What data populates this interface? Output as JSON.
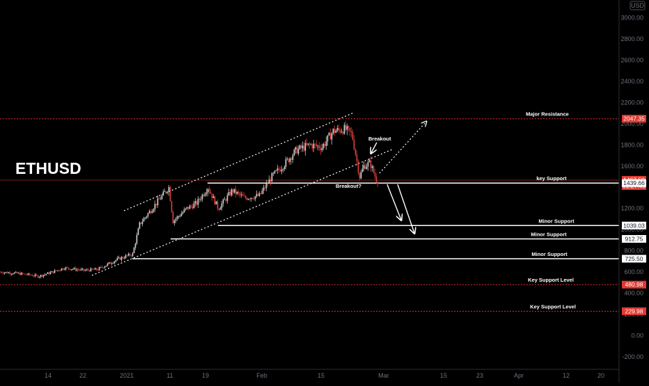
{
  "chart_data": {
    "type": "candlestick",
    "title": "ETHUSD",
    "currency": "USD",
    "y_axis": {
      "ticks": [
        "3000.00",
        "2800.00",
        "2600.00",
        "2400.00",
        "2200.00",
        "2000.00",
        "1800.00",
        "1600.00",
        "1400.00",
        "1200.00",
        "1000.00",
        "800.00",
        "600.00",
        "400.00",
        "200.00",
        "0.00",
        "-200.00"
      ],
      "ylim": [
        -290,
        3140
      ]
    },
    "x_axis": {
      "ticks": [
        "14",
        "22",
        "2021",
        "11",
        "19",
        "Feb",
        "15",
        "Mar",
        "15",
        "23",
        "Apr",
        "12",
        "20"
      ]
    },
    "price_series": [
      {
        "x": "Dec 01",
        "close": 600
      },
      {
        "x": "Dec 05",
        "close": 590
      },
      {
        "x": "Dec 09",
        "close": 575
      },
      {
        "x": "Dec 12",
        "close": 560
      },
      {
        "x": "Dec 16",
        "close": 600
      },
      {
        "x": "Dec 19",
        "close": 640
      },
      {
        "x": "Dec 22",
        "close": 615
      },
      {
        "x": "Dec 25",
        "close": 625
      },
      {
        "x": "Dec 29",
        "close": 720
      },
      {
        "x": "Jan 02",
        "close": 770
      },
      {
        "x": "Jan 04",
        "close": 1050
      },
      {
        "x": "Jan 07",
        "close": 1200
      },
      {
        "x": "Jan 10",
        "close": 1400
      },
      {
        "x": "Jan 11",
        "close": 1080
      },
      {
        "x": "Jan 14",
        "close": 1200
      },
      {
        "x": "Jan 17",
        "close": 1250
      },
      {
        "x": "Jan 19",
        "close": 1400
      },
      {
        "x": "Jan 22",
        "close": 1200
      },
      {
        "x": "Jan 25",
        "close": 1370
      },
      {
        "x": "Jan 28",
        "close": 1300
      },
      {
        "x": "Jan 31",
        "close": 1320
      },
      {
        "x": "Feb 03",
        "close": 1500
      },
      {
        "x": "Feb 06",
        "close": 1620
      },
      {
        "x": "Feb 09",
        "close": 1750
      },
      {
        "x": "Feb 13",
        "close": 1800
      },
      {
        "x": "Feb 16",
        "close": 1780
      },
      {
        "x": "Feb 18",
        "close": 1930
      },
      {
        "x": "Feb 20",
        "close": 1950
      },
      {
        "x": "Feb 21",
        "close": 1900
      },
      {
        "x": "Feb 23",
        "close": 1500
      },
      {
        "x": "Feb 24",
        "close": 1600
      },
      {
        "x": "Feb 25",
        "close": 1630
      },
      {
        "x": "Feb 26",
        "close": 1470
      },
      {
        "x": "Feb 27",
        "close": 1467.5
      }
    ],
    "price_tags": [
      {
        "value": 2047.35,
        "label": "2047.35",
        "style": "red"
      },
      {
        "value": 1467.5,
        "label": "1467.50",
        "sub": "01:27:45",
        "style": "red"
      },
      {
        "value": 1439.66,
        "label": "1439.66",
        "style": "white"
      },
      {
        "value": 1039.03,
        "label": "1039.03",
        "style": "white"
      },
      {
        "value": 912.75,
        "label": "912.75",
        "style": "white"
      },
      {
        "value": 725.5,
        "label": "725.50",
        "style": "white"
      },
      {
        "value": 480.98,
        "label": "480.98",
        "style": "red"
      },
      {
        "value": 229.98,
        "label": "229.98",
        "style": "red"
      }
    ],
    "levels": [
      {
        "name": "Major Resistance",
        "value": 2047.35,
        "style": "dotted-red"
      },
      {
        "name": "key Support",
        "value": 1439.66,
        "style": "solid-white"
      },
      {
        "name": "Minor Support",
        "value": 1039.03,
        "style": "solid-white"
      },
      {
        "name": "Minor Support",
        "value": 912.75,
        "style": "solid-white"
      },
      {
        "name": "Minor Support",
        "value": 725.5,
        "style": "solid-white"
      },
      {
        "name": "Key Support Level",
        "value": 480.98,
        "style": "dotted-red"
      },
      {
        "name": "Key Support Level",
        "value": 229.98,
        "style": "dotted-red"
      }
    ],
    "annotations": [
      "Breakout",
      "Breakout?"
    ],
    "colors": {
      "background": "#000000",
      "up": "#d8d8d8",
      "down": "#e0433c",
      "resistance": "#e03030",
      "support": "#ffffff",
      "axis_text": "#6d717a"
    },
    "grid": false
  }
}
